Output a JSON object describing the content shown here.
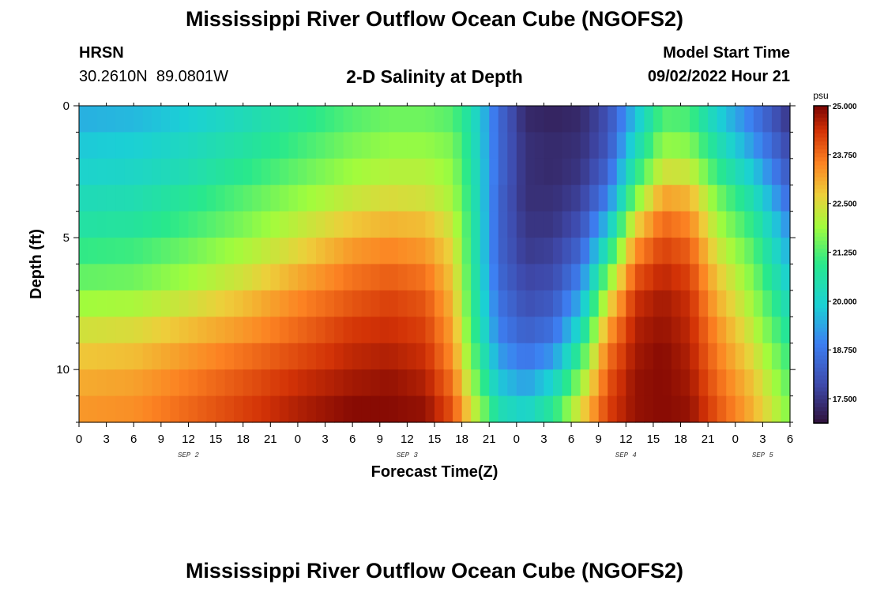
{
  "header": {
    "title": "Mississippi River Outflow Ocean Cube (NGOFS2)",
    "station_name": "HRSN",
    "station_coords": "30.2610N  89.0801W",
    "subtitle": "2-D Salinity at Depth",
    "model_start_label": "Model Start Time",
    "model_start_value": "09/02/2022 Hour 21"
  },
  "footer": {
    "title": "Mississippi River Outflow Ocean Cube (NGOFS2)"
  },
  "chart_data": {
    "type": "heatmap",
    "title": "2-D Salinity at Depth",
    "xlabel": "Forecast Time(Z)",
    "ylabel": "Depth (ft)",
    "x_range_hours": [
      0,
      78
    ],
    "x_tick_labels": [
      "0",
      "3",
      "6",
      "9",
      "12",
      "15",
      "18",
      "21",
      "0",
      "3",
      "6",
      "9",
      "12",
      "15",
      "18",
      "21",
      "0",
      "3",
      "6",
      "9",
      "12",
      "15",
      "18",
      "21",
      "0",
      "3",
      "6"
    ],
    "date_labels": [
      {
        "text": "SEP 2",
        "hour": 12
      },
      {
        "text": "SEP 3",
        "hour": 36
      },
      {
        "text": "SEP 4",
        "hour": 60
      },
      {
        "text": "SEP 5",
        "hour": 75
      }
    ],
    "y_range_ft": [
      0,
      12
    ],
    "y_tick_labels": [
      "0",
      "5",
      "10"
    ],
    "y_tick_values": [
      0,
      5,
      10
    ],
    "colorbar": {
      "unit": "psu",
      "min": 16.875,
      "max": 25.0,
      "labels": [
        "25.000",
        "23.750",
        "22.500",
        "21.250",
        "20.000",
        "18.750",
        "17.500"
      ],
      "label_values": [
        25.0,
        23.75,
        22.5,
        21.25,
        20.0,
        18.75,
        17.5
      ]
    },
    "depth_levels_ft": [
      0.5,
      1.5,
      2.5,
      3.5,
      4.5,
      5.5,
      6.5,
      7.5,
      8.5,
      9.5,
      10.5,
      11.5
    ],
    "time_keys_hours": [
      0,
      6,
      12,
      18,
      24,
      30,
      34,
      38,
      41,
      43,
      46,
      49,
      52,
      55,
      58,
      61,
      64,
      67,
      70,
      74,
      78
    ],
    "salinity_keys": [
      [
        19.5,
        19.6,
        19.9,
        20.3,
        20.8,
        21.3,
        21.5,
        21.5,
        21.3,
        20.5,
        18.5,
        17.3,
        17.2,
        17.3,
        18.0,
        19.7,
        21.3,
        21.2,
        20.0,
        18.8,
        17.5
      ],
      [
        19.8,
        19.9,
        20.2,
        20.6,
        21.1,
        21.6,
        21.8,
        21.8,
        21.6,
        20.6,
        18.5,
        17.4,
        17.3,
        17.4,
        18.1,
        20.2,
        21.8,
        21.7,
        20.5,
        19.2,
        17.8
      ],
      [
        20.0,
        20.1,
        20.4,
        20.9,
        21.4,
        21.9,
        22.1,
        22.1,
        21.8,
        20.7,
        18.5,
        17.4,
        17.3,
        17.5,
        18.4,
        20.8,
        22.4,
        22.3,
        21.0,
        19.8,
        18.1
      ],
      [
        20.3,
        20.4,
        20.8,
        21.3,
        21.8,
        22.3,
        22.5,
        22.4,
        22.0,
        20.8,
        18.4,
        17.4,
        17.4,
        17.7,
        18.9,
        21.6,
        23.2,
        23.0,
        21.6,
        20.4,
        18.5
      ],
      [
        20.6,
        20.7,
        21.1,
        21.6,
        22.2,
        22.8,
        23.0,
        22.9,
        22.3,
        20.9,
        18.4,
        17.5,
        17.5,
        18.0,
        19.7,
        22.6,
        23.8,
        23.5,
        22.0,
        20.9,
        19.0
      ],
      [
        21.0,
        21.1,
        21.5,
        22.0,
        22.6,
        23.3,
        23.5,
        23.3,
        22.6,
        20.9,
        18.4,
        17.6,
        17.7,
        18.4,
        20.6,
        23.4,
        24.2,
        23.9,
        22.4,
        21.3,
        19.4
      ],
      [
        21.4,
        21.5,
        21.9,
        22.4,
        23.1,
        23.7,
        23.9,
        23.7,
        22.8,
        21.0,
        18.5,
        17.8,
        17.9,
        18.9,
        21.6,
        24.0,
        24.5,
        24.2,
        22.8,
        21.6,
        19.8
      ],
      [
        21.9,
        22.0,
        22.4,
        22.9,
        23.5,
        24.0,
        24.2,
        24.0,
        23.0,
        21.1,
        18.7,
        18.0,
        18.2,
        19.5,
        22.5,
        24.4,
        24.7,
        24.4,
        23.1,
        21.9,
        20.2
      ],
      [
        22.4,
        22.5,
        22.9,
        23.3,
        23.8,
        24.3,
        24.4,
        24.2,
        23.2,
        21.3,
        18.9,
        18.3,
        18.6,
        20.2,
        23.2,
        24.6,
        24.8,
        24.5,
        23.4,
        22.2,
        20.6
      ],
      [
        22.8,
        22.9,
        23.3,
        23.7,
        24.1,
        24.5,
        24.6,
        24.4,
        23.4,
        21.6,
        19.3,
        18.7,
        19.2,
        21.0,
        23.7,
        24.7,
        24.9,
        24.6,
        23.6,
        22.5,
        21.0
      ],
      [
        23.1,
        23.2,
        23.6,
        24.0,
        24.4,
        24.7,
        24.8,
        24.6,
        23.7,
        22.0,
        19.8,
        19.3,
        20.0,
        21.8,
        24.0,
        24.8,
        24.9,
        24.7,
        23.8,
        22.8,
        21.3
      ],
      [
        23.3,
        23.4,
        23.8,
        24.2,
        24.6,
        24.9,
        24.9,
        24.8,
        24.0,
        22.5,
        20.4,
        20.0,
        20.8,
        22.5,
        24.2,
        24.8,
        24.9,
        24.8,
        24.0,
        23.0,
        21.6
      ]
    ]
  }
}
